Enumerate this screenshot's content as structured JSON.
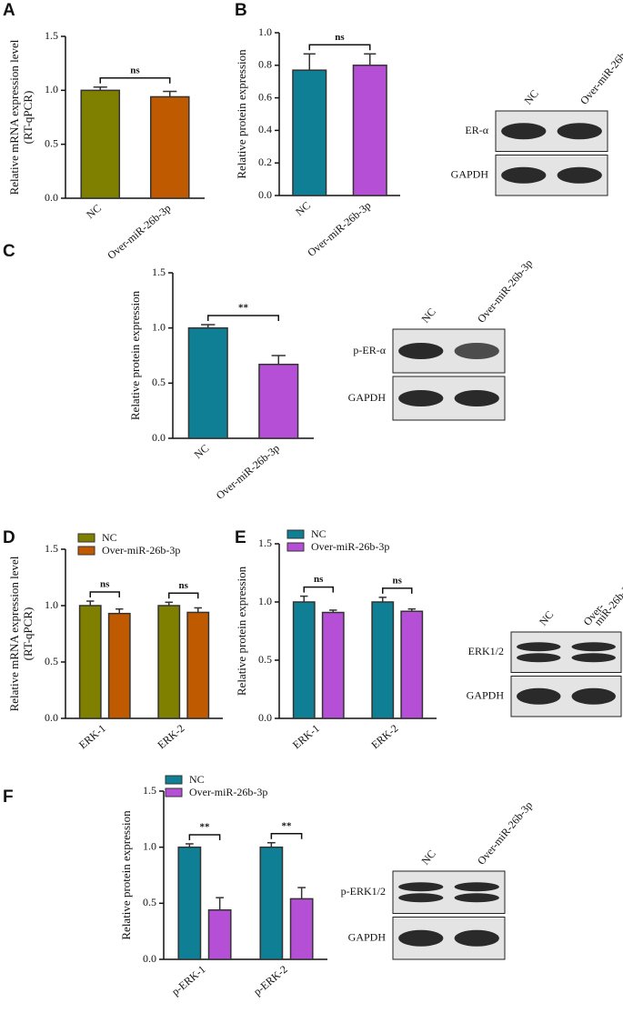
{
  "chart_data": [
    {
      "type": "bar",
      "panel_label": "A",
      "ylabel": [
        "Relative mRNA expression level",
        "(RT-qPCR)"
      ],
      "categories": [
        "NC",
        "Over-miR-26b-3p"
      ],
      "series": [
        {
          "colors": [
            "#7f7f00",
            "#c05a00"
          ],
          "values": [
            1.0,
            0.94
          ],
          "errors": [
            0.03,
            0.05
          ]
        }
      ],
      "ylim": [
        0,
        1.5
      ],
      "yticks": [
        {
          "value": 0,
          "label": "0.0"
        },
        {
          "value": 0.5,
          "label": "0.5"
        },
        {
          "value": 1,
          "label": "1.0"
        },
        {
          "value": 1.5,
          "label": "1.5"
        }
      ],
      "annotations": [
        "ns"
      ]
    },
    {
      "type": "bar",
      "panel_label": "B",
      "ylabel": [
        "Relative protein expression"
      ],
      "categories": [
        "NC",
        "Over-miR-26b-3p"
      ],
      "series": [
        {
          "colors": [
            "#0e7f94",
            "#b44fd6"
          ],
          "values": [
            0.77,
            0.8
          ],
          "errors": [
            0.1,
            0.07
          ]
        }
      ],
      "ylim": [
        0,
        1
      ],
      "yticks": [
        {
          "value": 0,
          "label": "0.0"
        },
        0.2,
        0.4,
        0.6,
        0.8,
        {
          "value": 1,
          "label": "1.0"
        }
      ],
      "annotations": [
        "ns"
      ],
      "blot": {
        "lanes": [
          [
            "NC"
          ],
          [
            "Over-miR-26b-3p"
          ]
        ],
        "rows": [
          "ER-α",
          "GAPDH"
        ]
      }
    },
    {
      "type": "bar",
      "panel_label": "C",
      "ylabel": [
        "Relative protein expression"
      ],
      "categories": [
        "NC",
        "Over-miR-26b-3p"
      ],
      "series": [
        {
          "colors": [
            "#0e7f94",
            "#b44fd6"
          ],
          "values": [
            1.0,
            0.67
          ],
          "errors": [
            0.03,
            0.08
          ]
        }
      ],
      "ylim": [
        0,
        1.5
      ],
      "yticks": [
        {
          "value": 0,
          "label": "0.0"
        },
        {
          "value": 0.5,
          "label": "0.5"
        },
        {
          "value": 1,
          "label": "1.0"
        },
        {
          "value": 1.5,
          "label": "1.5"
        }
      ],
      "annotations": [
        "**"
      ],
      "blot": {
        "lanes": [
          [
            "NC"
          ],
          [
            "Over-miR-26b-3p"
          ]
        ],
        "rows": [
          "p-ER-α",
          "GAPDH"
        ]
      }
    },
    {
      "type": "bar",
      "panel_label": "D",
      "ylabel": [
        "Relative mRNA expression level",
        "(RT-qPCR)"
      ],
      "categories": [
        "ERK-1",
        "ERK-2"
      ],
      "series": [
        {
          "name": "NC",
          "color": "#7f7f00",
          "values": [
            1.0,
            1.0
          ],
          "errors": [
            0.04,
            0.03
          ]
        },
        {
          "name": "Over-miR-26b-3p",
          "color": "#c05a00",
          "values": [
            0.93,
            0.94
          ],
          "errors": [
            0.04,
            0.04
          ]
        }
      ],
      "ylim": [
        0,
        1.5
      ],
      "yticks": [
        {
          "value": 0,
          "label": "0.0"
        },
        {
          "value": 0.5,
          "label": "0.5"
        },
        {
          "value": 1,
          "label": "1.0"
        },
        {
          "value": 1.5,
          "label": "1.5"
        }
      ],
      "annotations": [
        "ns",
        "ns"
      ],
      "legend": "top-left"
    },
    {
      "type": "bar",
      "panel_label": "E",
      "ylabel": [
        "Relative protein expression"
      ],
      "categories": [
        "ERK-1",
        "ERK-2"
      ],
      "series": [
        {
          "name": "NC",
          "color": "#0e7f94",
          "values": [
            1.0,
            1.0
          ],
          "errors": [
            0.05,
            0.04
          ]
        },
        {
          "name": "Over-miR-26b-3p",
          "color": "#b44fd6",
          "values": [
            0.91,
            0.92
          ],
          "errors": [
            0.02,
            0.02
          ]
        }
      ],
      "ylim": [
        0,
        1.5
      ],
      "yticks": [
        {
          "value": 0,
          "label": "0.0"
        },
        {
          "value": 0.5,
          "label": "0.5"
        },
        {
          "value": 1,
          "label": "1.0"
        },
        {
          "value": 1.5,
          "label": "1.5"
        }
      ],
      "annotations": [
        "ns",
        "ns"
      ],
      "legend": "top-left",
      "blot": {
        "lanes": [
          [
            "NC"
          ],
          [
            "Over-",
            "miR-26b-3p"
          ]
        ],
        "rows": [
          "ERK1/2",
          "GAPDH"
        ]
      }
    },
    {
      "type": "bar",
      "panel_label": "F",
      "ylabel": [
        "Relative protein expression"
      ],
      "categories": [
        "p-ERK-1",
        "p-ERK-2"
      ],
      "series": [
        {
          "name": "NC",
          "color": "#0e7f94",
          "values": [
            1.0,
            1.0
          ],
          "errors": [
            0.03,
            0.04
          ]
        },
        {
          "name": "Over-miR-26b-3p",
          "color": "#b44fd6",
          "values": [
            0.44,
            0.54
          ],
          "errors": [
            0.11,
            0.1
          ]
        }
      ],
      "ylim": [
        0,
        1.5
      ],
      "yticks": [
        {
          "value": 0,
          "label": "0.0"
        },
        {
          "value": 0.5,
          "label": "0.5"
        },
        {
          "value": 1,
          "label": "1.0"
        },
        {
          "value": 1.5,
          "label": "1.5"
        }
      ],
      "annotations": [
        "**",
        "**"
      ],
      "legend": "top-left",
      "blot": {
        "lanes": [
          [
            "NC"
          ],
          [
            "Over-miR-26b-3p"
          ]
        ],
        "rows": [
          "p-ERK1/2",
          "GAPDH"
        ]
      }
    }
  ]
}
